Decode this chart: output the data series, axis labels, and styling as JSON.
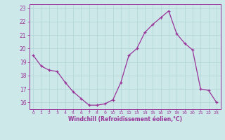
{
  "x": [
    0,
    1,
    2,
    3,
    4,
    5,
    6,
    7,
    8,
    9,
    10,
    11,
    12,
    13,
    14,
    15,
    16,
    17,
    18,
    19,
    20,
    21,
    22,
    23
  ],
  "y": [
    19.5,
    18.7,
    18.4,
    18.3,
    17.5,
    16.8,
    16.3,
    15.8,
    15.8,
    15.9,
    16.2,
    17.5,
    19.5,
    20.0,
    21.2,
    21.8,
    22.3,
    22.8,
    21.1,
    20.4,
    19.9,
    17.0,
    16.9,
    16.0
  ],
  "line_color": "#993399",
  "marker": "+",
  "marker_size": 3,
  "bg_color": "#cce8e8",
  "grid_color": "#b0d4d4",
  "xlabel": "Windchill (Refroidissement éolien,°C)",
  "xlabel_color": "#993399",
  "tick_color": "#993399",
  "ylim": [
    15.5,
    23.3
  ],
  "xlim": [
    -0.5,
    23.5
  ],
  "yticks": [
    16,
    17,
    18,
    19,
    20,
    21,
    22,
    23
  ],
  "xticks": [
    0,
    1,
    2,
    3,
    4,
    5,
    6,
    7,
    8,
    9,
    10,
    11,
    12,
    13,
    14,
    15,
    16,
    17,
    18,
    19,
    20,
    21,
    22,
    23
  ]
}
